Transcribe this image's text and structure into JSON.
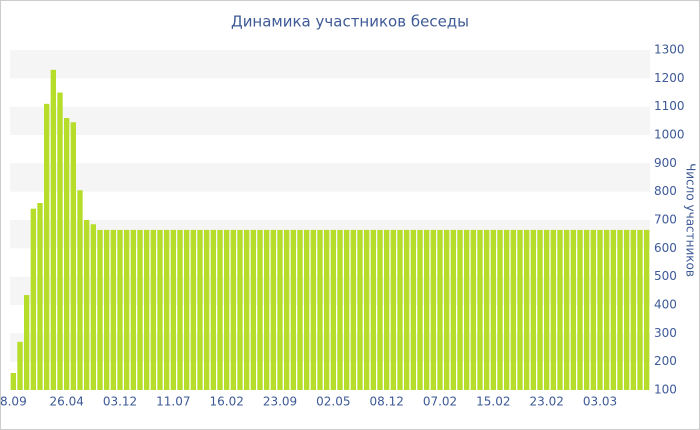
{
  "chart_data": {
    "type": "bar",
    "title": "Динамика участников беседы",
    "y_axis_label": "Число участников",
    "categories": [
      "8.09",
      null,
      null,
      null,
      null,
      null,
      null,
      null,
      "26.04",
      null,
      null,
      null,
      null,
      null,
      null,
      null,
      "03.12",
      null,
      null,
      null,
      null,
      null,
      null,
      null,
      "11.07",
      null,
      null,
      null,
      null,
      null,
      null,
      null,
      "16.02",
      null,
      null,
      null,
      null,
      null,
      null,
      null,
      "23.09",
      null,
      null,
      null,
      null,
      null,
      null,
      null,
      "02.05",
      null,
      null,
      null,
      null,
      null,
      null,
      null,
      "08.12",
      null,
      null,
      null,
      null,
      null,
      null,
      null,
      "07.02",
      null,
      null,
      null,
      null,
      null,
      null,
      null,
      "15.02",
      null,
      null,
      null,
      null,
      null,
      null,
      null,
      "23.02",
      null,
      null,
      null,
      null,
      null,
      null,
      null,
      "03.03",
      null,
      null,
      null,
      null,
      null,
      null,
      null
    ],
    "values": [
      160,
      270,
      435,
      740,
      760,
      1110,
      1230,
      1150,
      1060,
      1045,
      805,
      700,
      685,
      665,
      665,
      665,
      665,
      665,
      665,
      665,
      665,
      665,
      665,
      665,
      665,
      665,
      665,
      665,
      665,
      665,
      665,
      665,
      665,
      665,
      665,
      665,
      665,
      665,
      665,
      665,
      665,
      665,
      665,
      665,
      665,
      665,
      665,
      665,
      665,
      665,
      665,
      665,
      665,
      665,
      665,
      665,
      665,
      665,
      665,
      665,
      665,
      665,
      665,
      665,
      665,
      665,
      665,
      665,
      665,
      665,
      665,
      665,
      665,
      665,
      665,
      665,
      665,
      665,
      665,
      665,
      665,
      665,
      665,
      665,
      665,
      665,
      665,
      665,
      665,
      665,
      665,
      665,
      665,
      665,
      665,
      665
    ],
    "color": "#b5dd2a",
    "ylim": [
      100,
      1300
    ],
    "yticks": [
      100,
      200,
      300,
      400,
      500,
      600,
      700,
      800,
      900,
      1000,
      1100,
      1200,
      1300
    ],
    "grid": true
  }
}
